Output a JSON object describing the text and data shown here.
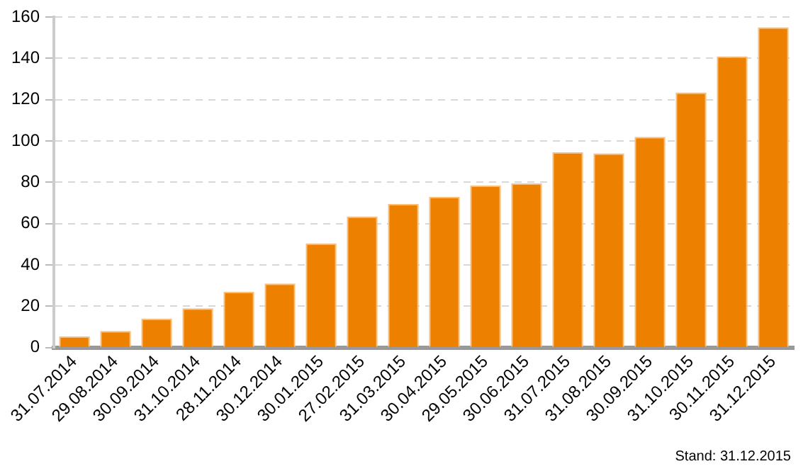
{
  "chart_data": {
    "type": "bar",
    "categories": [
      "31.07.2014",
      "29.08.2014",
      "30.09.2014",
      "31.10.2014",
      "28.11.2014",
      "30.12.2014",
      "30.01.2015",
      "27.02.2015",
      "31.03.2015",
      "30.04.2015",
      "29.05.2015",
      "30.06.2015",
      "31.07.2015",
      "31.08.2015",
      "30.09.2015",
      "31.10.2015",
      "30.11.2015",
      "31.12.2015"
    ],
    "values": [
      5.5,
      8,
      14,
      19,
      27,
      31,
      50.5,
      63.5,
      69.5,
      73,
      78.5,
      79.5,
      94.5,
      94,
      102,
      123.5,
      141,
      155
    ],
    "color": "#ee8000",
    "ylim": [
      0,
      160
    ],
    "yticks": [
      0,
      20,
      40,
      60,
      80,
      100,
      120,
      140,
      160
    ],
    "grid": "y",
    "legend": false,
    "annotations": [
      "Stand: 31.12.2015"
    ]
  }
}
